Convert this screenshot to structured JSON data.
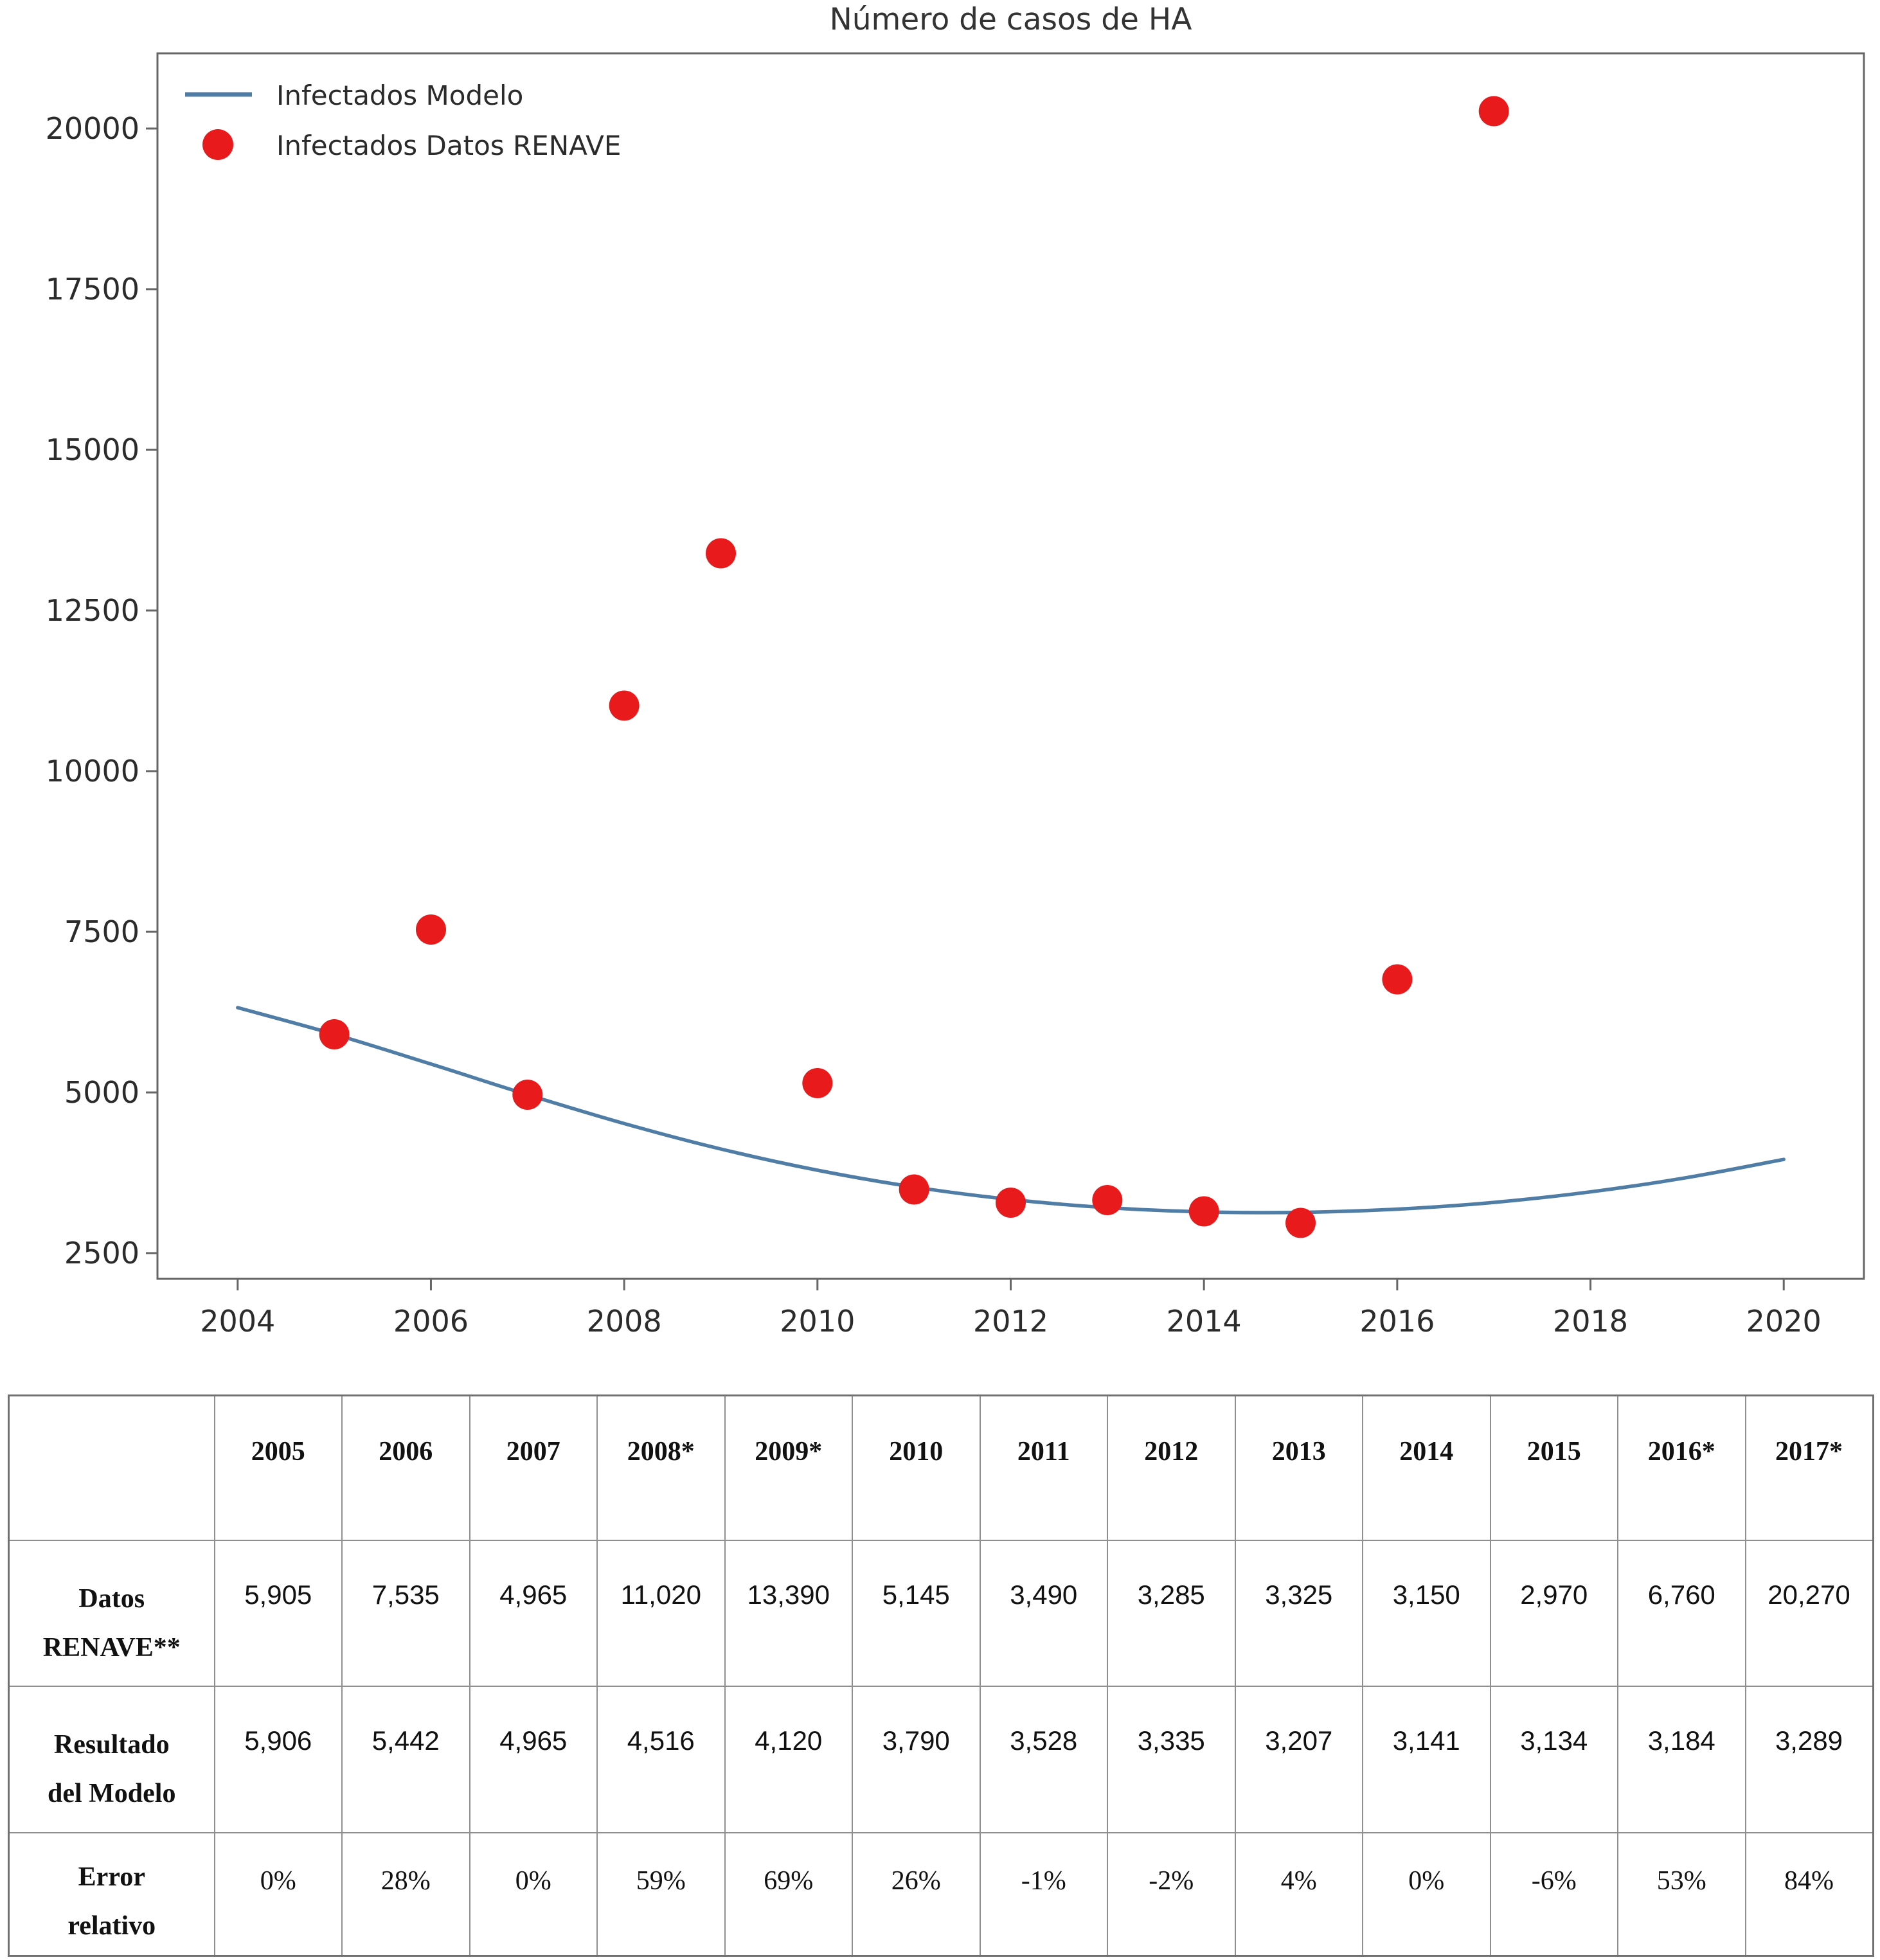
{
  "chart_data": {
    "type": "scatter",
    "title": "Número de casos de HA",
    "xlabel": "",
    "ylabel": "",
    "xlim": [
      2003.17,
      2020.83
    ],
    "ylim": [
      2100,
      21170
    ],
    "xticks": [
      2004,
      2006,
      2008,
      2010,
      2012,
      2014,
      2016,
      2018,
      2020
    ],
    "yticks": [
      2500,
      5000,
      7500,
      10000,
      12500,
      15000,
      17500,
      20000
    ],
    "grid": false,
    "legend_position": "upper left",
    "colors": {
      "model_line": "#4f7da6",
      "data_points": "#e81a1c",
      "axis": "#666666",
      "text": "#2b2b2b"
    },
    "series": [
      {
        "name": "Infectados Modelo",
        "type": "line",
        "color": "#4f7da6",
        "x": [
          2004,
          2005,
          2006,
          2007,
          2008,
          2009,
          2010,
          2011,
          2012,
          2013,
          2014,
          2015,
          2016,
          2017,
          2018,
          2019,
          2020
        ],
        "values": [
          6320,
          5906,
          5442,
          4965,
          4516,
          4120,
          3790,
          3528,
          3335,
          3207,
          3141,
          3134,
          3184,
          3289,
          3453,
          3676,
          3958
        ]
      },
      {
        "name": "Infectados Datos RENAVE",
        "type": "scatter",
        "color": "#e81a1c",
        "x": [
          2005,
          2006,
          2007,
          2008,
          2009,
          2010,
          2011,
          2012,
          2013,
          2014,
          2015,
          2016,
          2017
        ],
        "values": [
          5905,
          7535,
          4965,
          11020,
          13390,
          5145,
          3490,
          3285,
          3325,
          3150,
          2970,
          6760,
          20270
        ]
      }
    ]
  },
  "table": {
    "columns": [
      "",
      "2005",
      "2006",
      "2007",
      "2008*",
      "2009*",
      "2010",
      "2011",
      "2012",
      "2013",
      "2014",
      "2015",
      "2016*",
      "2017*"
    ],
    "rows": [
      {
        "label": "Datos RENAVE**",
        "label_lines": [
          "Datos",
          "RENAVE**"
        ],
        "values": [
          "5,905",
          "7,535",
          "4,965",
          "11,020",
          "13,390",
          "5,145",
          "3,490",
          "3,285",
          "3,325",
          "3,150",
          "2,970",
          "6,760",
          "20,270"
        ]
      },
      {
        "label": "Resultado del Modelo",
        "label_lines": [
          "Resultado",
          "del Modelo"
        ],
        "values": [
          "5,906",
          "5,442",
          "4,965",
          "4,516",
          "4,120",
          "3,790",
          "3,528",
          "3,335",
          "3,207",
          "3,141",
          "3,134",
          "3,184",
          "3,289"
        ]
      },
      {
        "label": "Error relativo",
        "label_lines": [
          "Error",
          "relativo"
        ],
        "values": [
          "0%",
          "28%",
          "0%",
          "59%",
          "69%",
          "26%",
          "-1%",
          "-2%",
          "4%",
          "0%",
          "-6%",
          "53%",
          "84%"
        ]
      }
    ]
  }
}
